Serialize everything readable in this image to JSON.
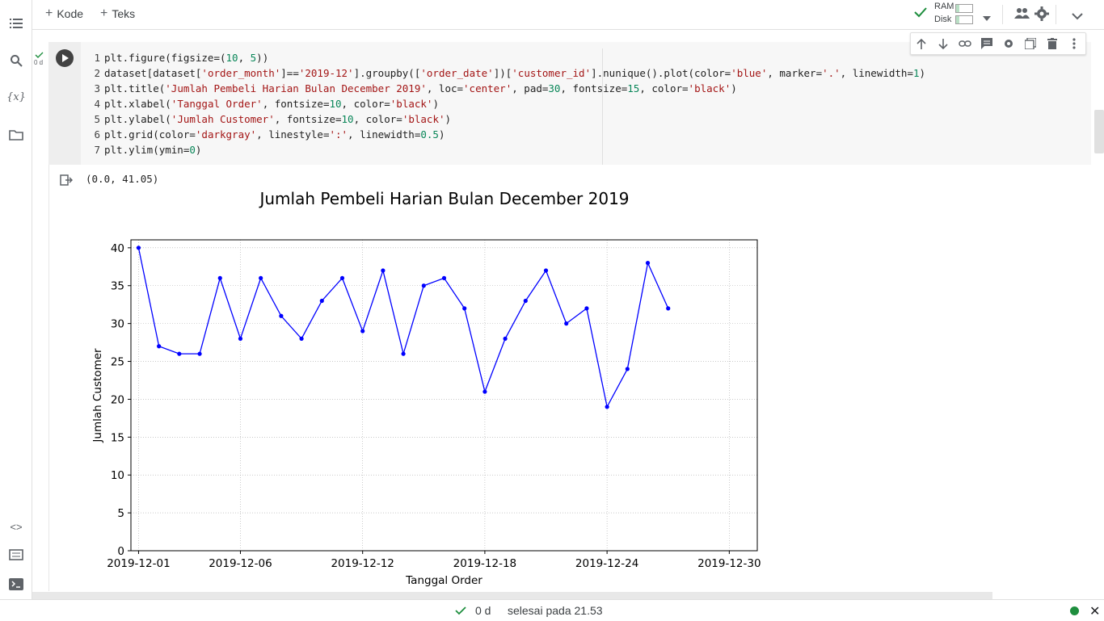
{
  "toolbar": {
    "add_code": "Kode",
    "add_text": "Teks"
  },
  "runtime": {
    "ram_label": "RAM",
    "disk_label": "Disk"
  },
  "cell": {
    "exec_time": "0 d",
    "code_lines": [
      [
        {
          "t": "plt.figure(figsize=("
        },
        {
          "t": "10",
          "c": "n"
        },
        {
          "t": ", "
        },
        {
          "t": "5",
          "c": "n"
        },
        {
          "t": "))"
        }
      ],
      [
        {
          "t": "dataset[dataset["
        },
        {
          "t": "'order_month'",
          "c": "s"
        },
        {
          "t": "]=="
        },
        {
          "t": "'2019-12'",
          "c": "s"
        },
        {
          "t": "].groupby(["
        },
        {
          "t": "'order_date'",
          "c": "s"
        },
        {
          "t": "])["
        },
        {
          "t": "'customer_id'",
          "c": "s"
        },
        {
          "t": "].nunique().plot(color="
        },
        {
          "t": "'blue'",
          "c": "s"
        },
        {
          "t": ", marker="
        },
        {
          "t": "'.'",
          "c": "s"
        },
        {
          "t": ", linewidth="
        },
        {
          "t": "1",
          "c": "n"
        },
        {
          "t": ")"
        }
      ],
      [
        {
          "t": "plt.title("
        },
        {
          "t": "'Jumlah Pembeli Harian Bulan December 2019'",
          "c": "s"
        },
        {
          "t": ", loc="
        },
        {
          "t": "'center'",
          "c": "s"
        },
        {
          "t": ", pad="
        },
        {
          "t": "30",
          "c": "n"
        },
        {
          "t": ", fontsize="
        },
        {
          "t": "15",
          "c": "n"
        },
        {
          "t": ", color="
        },
        {
          "t": "'black'",
          "c": "s"
        },
        {
          "t": ")"
        }
      ],
      [
        {
          "t": "plt.xlabel("
        },
        {
          "t": "'Tanggal Order'",
          "c": "s"
        },
        {
          "t": ", fontsize="
        },
        {
          "t": "10",
          "c": "n"
        },
        {
          "t": ", color="
        },
        {
          "t": "'black'",
          "c": "s"
        },
        {
          "t": ")"
        }
      ],
      [
        {
          "t": "plt.ylabel("
        },
        {
          "t": "'Jumlah Customer'",
          "c": "s"
        },
        {
          "t": ", fontsize="
        },
        {
          "t": "10",
          "c": "n"
        },
        {
          "t": ", color="
        },
        {
          "t": "'black'",
          "c": "s"
        },
        {
          "t": ")"
        }
      ],
      [
        {
          "t": "plt.grid(color="
        },
        {
          "t": "'darkgray'",
          "c": "s"
        },
        {
          "t": ", linestyle="
        },
        {
          "t": "':'",
          "c": "s"
        },
        {
          "t": ", linewidth="
        },
        {
          "t": "0.5",
          "c": "n"
        },
        {
          "t": ")"
        }
      ],
      [
        {
          "t": "plt.ylim(ymin="
        },
        {
          "t": "0",
          "c": "n"
        },
        {
          "t": ")"
        }
      ]
    ],
    "output_text": "(0.0, 41.05)"
  },
  "status": {
    "elapsed": "0 d",
    "finished": "selesai pada 21.53"
  },
  "colors": {
    "line": "#0000ff",
    "grid": "#a9a9a9",
    "ok_green": "#1e8e3e"
  },
  "chart_data": {
    "type": "line",
    "title": "Jumlah Pembeli Harian Bulan December 2019",
    "xlabel": "Tanggal Order",
    "ylabel": "Jumlah Customer",
    "ylim": [
      0,
      41.05
    ],
    "grid": true,
    "x_ticks": [
      "2019-12-01",
      "2019-12-06",
      "2019-12-12",
      "2019-12-18",
      "2019-12-24",
      "2019-12-30"
    ],
    "y_ticks": [
      0,
      5,
      10,
      15,
      20,
      25,
      30,
      35,
      40
    ],
    "series": [
      {
        "x": [
          "2019-12-01",
          "2019-12-02",
          "2019-12-03",
          "2019-12-04",
          "2019-12-05",
          "2019-12-06",
          "2019-12-07",
          "2019-12-08",
          "2019-12-09",
          "2019-12-10",
          "2019-12-11",
          "2019-12-12",
          "2019-12-13",
          "2019-12-14",
          "2019-12-15",
          "2019-12-16",
          "2019-12-17",
          "2019-12-18",
          "2019-12-19",
          "2019-12-20",
          "2019-12-21",
          "2019-12-22",
          "2019-12-23",
          "2019-12-24",
          "2019-12-25",
          "2019-12-26",
          "2019-12-27",
          "2019-12-28",
          "2019-12-29",
          "2019-12-30",
          "2019-12-31"
        ],
        "values": [
          40,
          27,
          26,
          26,
          36,
          28,
          36,
          31,
          28,
          33,
          36,
          29,
          37,
          26,
          35,
          36,
          32,
          21,
          28,
          33,
          37,
          30,
          32,
          19,
          24,
          38,
          32,
          null,
          null,
          null,
          null
        ]
      }
    ]
  }
}
